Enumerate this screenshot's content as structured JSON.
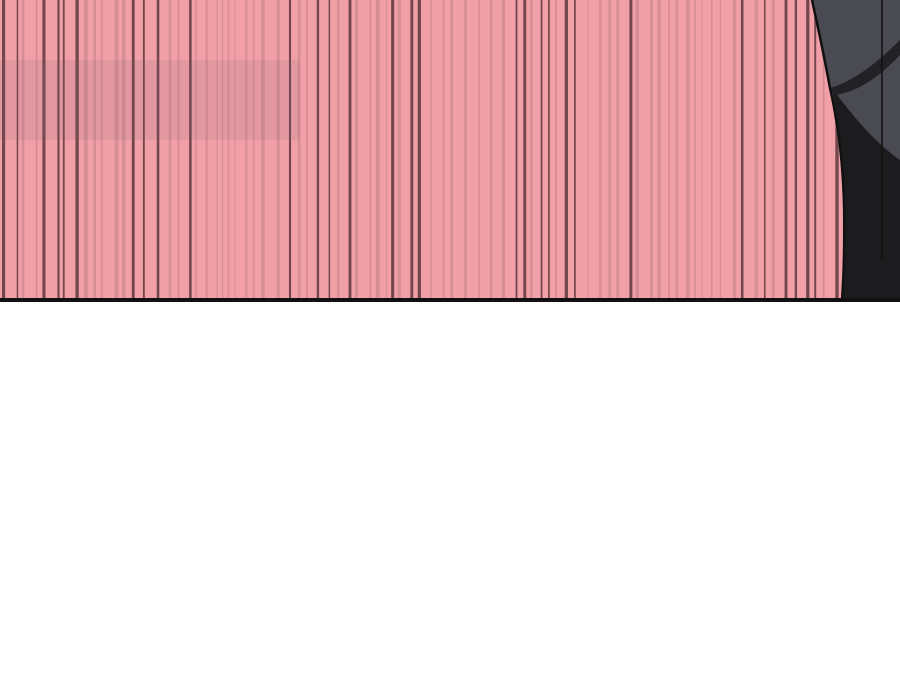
{
  "panel": {
    "background_color": "#f2a0a8",
    "stripe_dark_color": "#4a2a2e",
    "stripe_mid_color": "#b87880",
    "figure_light_color": "#4a4a52",
    "figure_dark_color": "#1c1c1e",
    "border_color": "#111111"
  },
  "page": {
    "background_color": "#ffffff"
  }
}
